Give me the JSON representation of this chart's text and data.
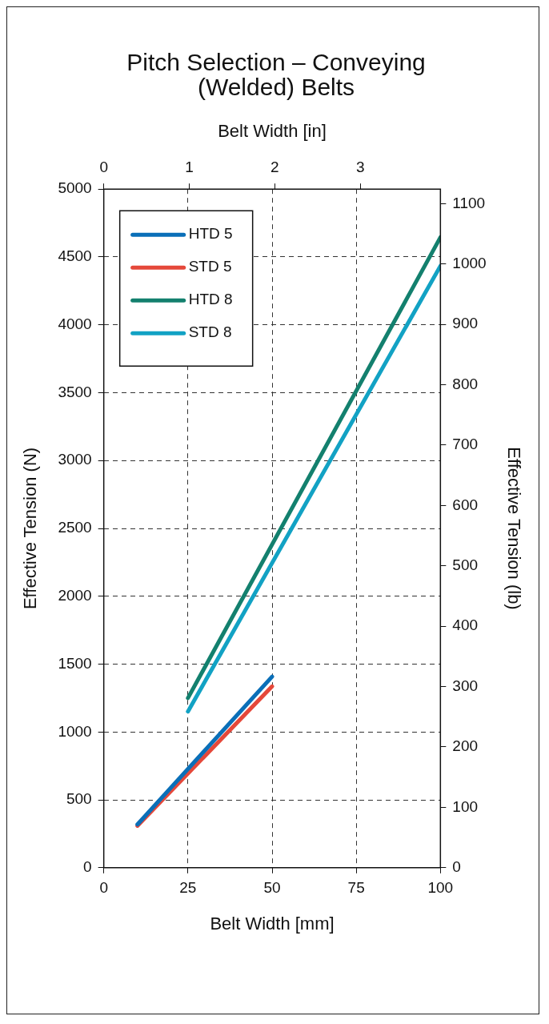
{
  "chart_data": {
    "type": "line",
    "title": "Pitch Selection – Conveying (Welded) Belts",
    "xlabel": "Belt Width [mm]",
    "x2label": "Belt Width [in]",
    "ylabel": "Effective Tension (N)",
    "y2label": "Effective Tension (lb)",
    "xlim": [
      0,
      100
    ],
    "xticks": [
      0,
      25,
      50,
      75,
      100
    ],
    "x2lim": [
      0,
      3.937
    ],
    "x2ticks": [
      0,
      1,
      2,
      3
    ],
    "ylim": [
      0,
      5000
    ],
    "yticks": [
      0,
      500,
      1000,
      1500,
      2000,
      2500,
      3000,
      3500,
      4000,
      4500,
      5000
    ],
    "y2lim": [
      0,
      1124
    ],
    "y2ticks": [
      0,
      100,
      200,
      300,
      400,
      500,
      600,
      700,
      800,
      900,
      1000,
      1100
    ],
    "grid": true,
    "legend": "top left",
    "marker": "none",
    "series": [
      {
        "name": "HTD 5",
        "color": "#0a6fb8",
        "x": [
          10,
          50
        ],
        "values": [
          319,
          1408
        ]
      },
      {
        "name": "STD 5",
        "color": "#e5483a",
        "x": [
          10,
          50
        ],
        "values": [
          309,
          1336
        ]
      },
      {
        "name": "HTD 8",
        "color": "#13806e",
        "x": [
          25,
          100
        ],
        "values": [
          1250,
          4645
        ]
      },
      {
        "name": "STD 8",
        "color": "#12a2c4",
        "x": [
          25,
          100
        ],
        "values": [
          1151,
          4434
        ]
      }
    ]
  }
}
